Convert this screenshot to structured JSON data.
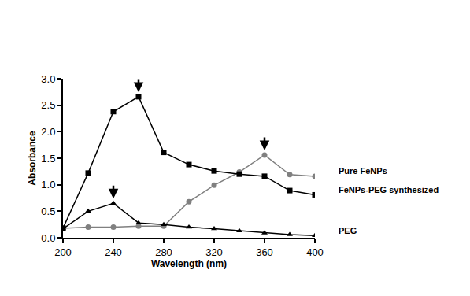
{
  "chart_data": {
    "type": "line",
    "x_label": "Wavelength (nm)",
    "y_label": "Absorbance",
    "x": [
      200,
      220,
      240,
      260,
      280,
      300,
      320,
      340,
      360,
      380,
      400
    ],
    "series": [
      {
        "name": "Pure FeNPs",
        "color": "#808080",
        "marker": "circle",
        "values": [
          0.18,
          0.2,
          0.2,
          0.22,
          0.22,
          0.68,
          0.99,
          1.24,
          1.56,
          1.19,
          1.16
        ]
      },
      {
        "name": "FeNPs-PEG synthesized",
        "color": "#000000",
        "marker": "square",
        "values": [
          0.18,
          1.22,
          2.38,
          2.66,
          1.61,
          1.38,
          1.26,
          1.2,
          1.16,
          0.89,
          0.81
        ]
      },
      {
        "name": "PEG",
        "color": "#000000",
        "marker": "triangle-up",
        "values": [
          0.17,
          0.5,
          0.65,
          0.28,
          0.25,
          0.2,
          0.17,
          0.13,
          0.09,
          0.06,
          0.04
        ]
      }
    ],
    "xlim": [
      200,
      400
    ],
    "xticks": [
      200,
      240,
      280,
      320,
      360,
      400
    ],
    "ylim": [
      0,
      3.0
    ],
    "yticks": [
      {
        "value": 0,
        "label": "0.0"
      },
      0.5,
      {
        "value": 1,
        "label": "1.0"
      },
      1.5,
      {
        "value": 2,
        "label": "2.0"
      },
      2.5,
      {
        "value": 3,
        "label": "3.0"
      }
    ],
    "grid": false
  }
}
